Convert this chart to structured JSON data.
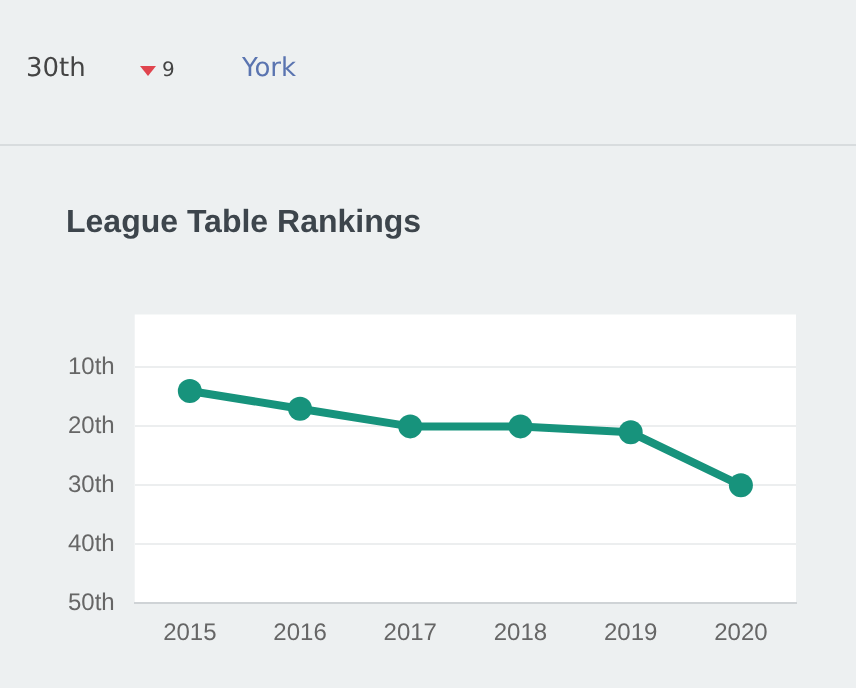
{
  "chart_data": {
    "type": "line",
    "title": "League Table Rankings",
    "annotations": [
      "30th",
      "9",
      "York"
    ],
    "categories": [
      "2015",
      "2016",
      "2017",
      "2018",
      "2019",
      "2020"
    ],
    "series": [
      {
        "color": "#17937c",
        "values": [
          14,
          17,
          20,
          20,
          21,
          30
        ]
      }
    ],
    "ylim": [
      50,
      1
    ],
    "yticks": [
      {
        "value": 10,
        "label": "10th"
      },
      {
        "value": 20,
        "label": "20th"
      },
      {
        "value": 30,
        "label": "30th"
      },
      {
        "value": 40,
        "label": "40th"
      },
      {
        "value": 50,
        "label": "50th"
      }
    ],
    "grid": "y",
    "legend": false,
    "marker": "circle",
    "line_style": "solid"
  }
}
